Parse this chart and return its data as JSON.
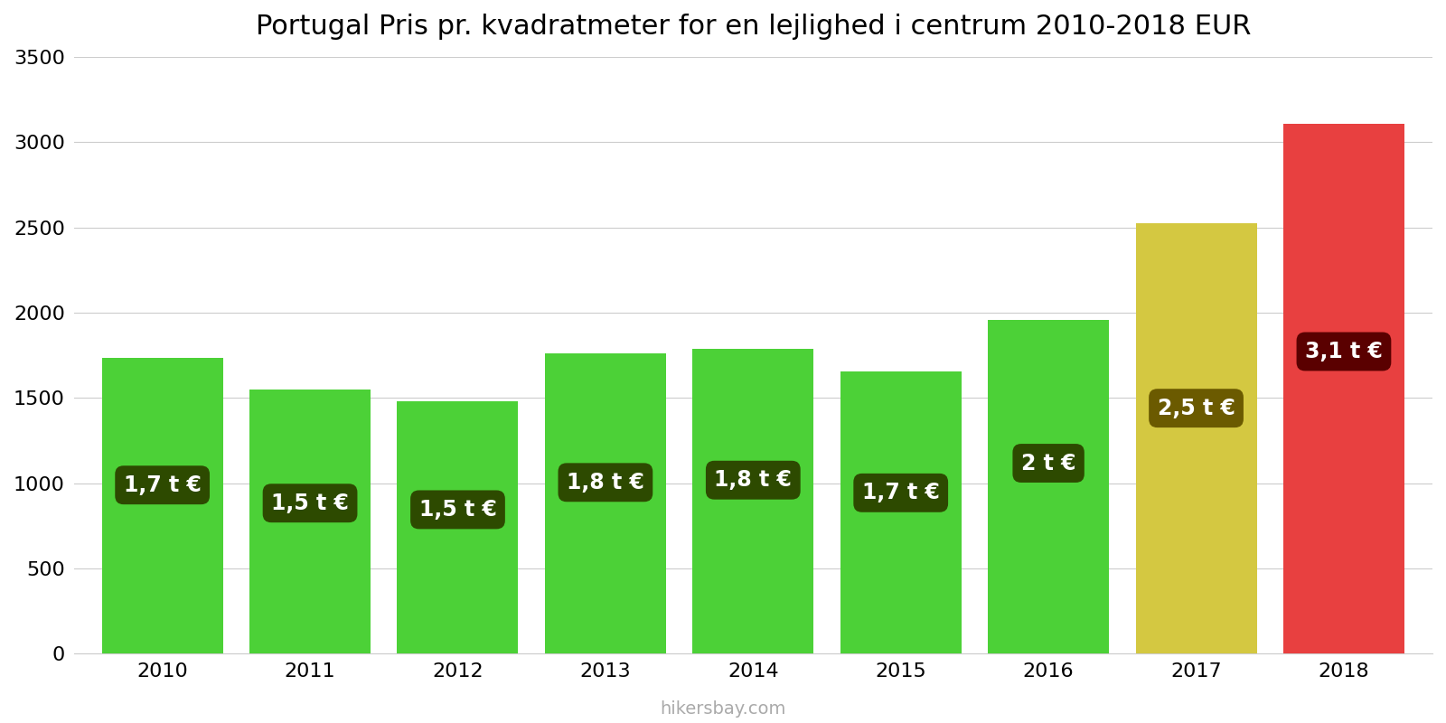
{
  "title": "Portugal Pris pr. kvadratmeter for en lejlighed i centrum 2010-2018 EUR",
  "years": [
    2010,
    2011,
    2012,
    2013,
    2014,
    2015,
    2016,
    2017,
    2018
  ],
  "values": [
    1735,
    1549,
    1482,
    1762,
    1786,
    1655,
    1960,
    2526,
    3109
  ],
  "bar_colors": [
    "#4cd137",
    "#4cd137",
    "#4cd137",
    "#4cd137",
    "#4cd137",
    "#4cd137",
    "#4cd137",
    "#d4c841",
    "#e84040"
  ],
  "label_texts": [
    "1,7 t €",
    "1,5 t €",
    "1,5 t €",
    "1,8 t €",
    "1,8 t €",
    "1,7 t €",
    "2 t €",
    "2,5 t €",
    "3,1 t €"
  ],
  "label_box_colors": [
    "#2d4a00",
    "#2d4a00",
    "#2d4a00",
    "#2d4a00",
    "#2d4a00",
    "#2d4a00",
    "#2d4a00",
    "#6b5a00",
    "#5a0000"
  ],
  "ylim": [
    0,
    3500
  ],
  "yticks": [
    0,
    500,
    1000,
    1500,
    2000,
    2500,
    3000,
    3500
  ],
  "background_color": "#ffffff",
  "watermark": "hikersbay.com",
  "title_fontsize": 22,
  "tick_fontsize": 16,
  "label_fontsize": 17,
  "bar_width": 0.82,
  "xlim_left": -0.6,
  "xlim_right": 8.6
}
